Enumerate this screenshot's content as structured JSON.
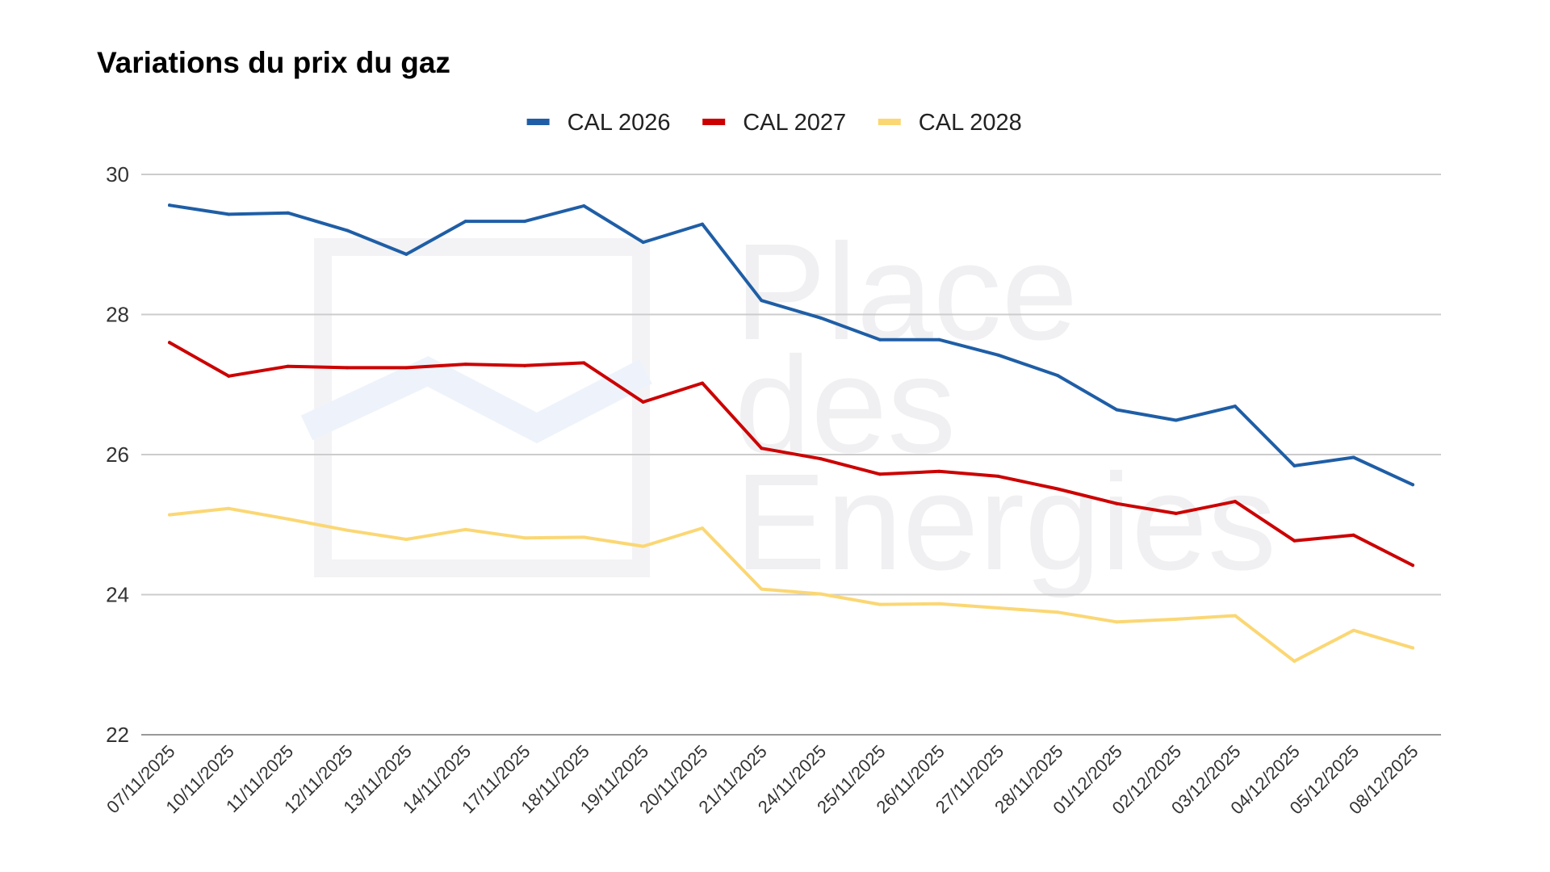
{
  "colors": {
    "CAL 2026": "#1f5ea6",
    "CAL 2027": "#cc0000",
    "CAL 2028": "#fbd774"
  },
  "watermark": {
    "lines": [
      "Place",
      "des",
      "Energies"
    ]
  },
  "chart_data": {
    "type": "line",
    "title": "Variations du prix du gaz",
    "xlabel": "",
    "ylabel": "",
    "ylim": [
      22,
      30
    ],
    "yticks": [
      22,
      24,
      26,
      28,
      30
    ],
    "grid": true,
    "legend": "top-center",
    "x": [
      "07/11/2025",
      "10/11/2025",
      "11/11/2025",
      "12/11/2025",
      "13/11/2025",
      "14/11/2025",
      "17/11/2025",
      "18/11/2025",
      "19/11/2025",
      "20/11/2025",
      "21/11/2025",
      "24/11/2025",
      "25/11/2025",
      "26/11/2025",
      "27/11/2025",
      "28/11/2025",
      "01/12/2025",
      "02/12/2025",
      "03/12/2025",
      "04/12/2025",
      "05/12/2025",
      "08/12/2025"
    ],
    "series": [
      {
        "name": "CAL 2026",
        "values": [
          29.56,
          29.43,
          29.45,
          29.2,
          28.86,
          29.33,
          29.33,
          29.55,
          29.03,
          29.29,
          28.2,
          27.95,
          27.64,
          27.64,
          27.42,
          27.13,
          26.64,
          26.49,
          26.69,
          25.84,
          25.96,
          25.57
        ]
      },
      {
        "name": "CAL 2027",
        "values": [
          27.6,
          27.12,
          27.26,
          27.24,
          27.24,
          27.29,
          27.27,
          27.31,
          26.75,
          27.02,
          26.09,
          25.94,
          25.72,
          25.76,
          25.69,
          25.51,
          25.3,
          25.16,
          25.33,
          24.77,
          24.85,
          24.42
        ]
      },
      {
        "name": "CAL 2028",
        "values": [
          25.14,
          25.23,
          25.08,
          24.92,
          24.79,
          24.93,
          24.81,
          24.82,
          24.69,
          24.95,
          24.08,
          24.01,
          23.86,
          23.87,
          23.81,
          23.75,
          23.61,
          23.65,
          23.7,
          23.05,
          23.49,
          23.24
        ]
      }
    ]
  }
}
